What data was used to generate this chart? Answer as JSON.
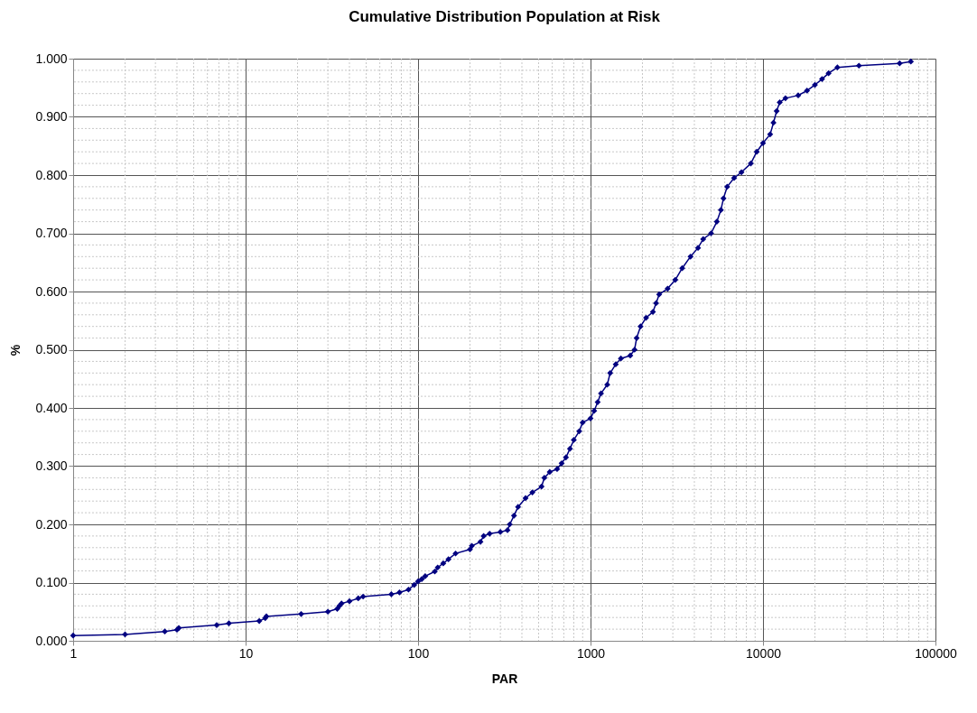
{
  "chart_data": {
    "type": "line",
    "title": "Cumulative Distribution Population at Risk",
    "xlabel": "PAR",
    "ylabel": "%",
    "log": "x",
    "xlim": [
      1,
      100000
    ],
    "xticks": [
      1,
      10,
      100,
      1000,
      10000,
      100000
    ],
    "ylim": [
      0,
      1
    ],
    "yticks": [
      {
        "value": 0,
        "label": "0.000"
      },
      {
        "value": 0.1,
        "label": "0.100"
      },
      {
        "value": 0.2,
        "label": "0.200"
      },
      {
        "value": 0.3,
        "label": "0.300"
      },
      {
        "value": 0.4,
        "label": "0.400"
      },
      {
        "value": 0.5,
        "label": "0.500"
      },
      {
        "value": 0.6,
        "label": "0.600"
      },
      {
        "value": 0.7,
        "label": "0.700"
      },
      {
        "value": 0.8,
        "label": "0.800"
      },
      {
        "value": 0.9,
        "label": "0.900"
      },
      {
        "value": 1,
        "label": "1.000"
      }
    ],
    "grid": true,
    "marker": "diamond",
    "line_style": "solid",
    "series": [
      {
        "color": "#000080",
        "x": [
          1,
          2,
          3.4,
          4,
          4.1,
          6.8,
          8,
          12,
          13,
          13.2,
          21,
          30,
          34,
          35,
          36,
          40,
          45,
          48,
          70,
          78,
          88,
          95,
          100,
          105,
          110,
          125,
          130,
          140,
          150,
          165,
          200,
          205,
          230,
          240,
          260,
          300,
          330,
          340,
          360,
          380,
          420,
          460,
          520,
          540,
          580,
          640,
          680,
          720,
          760,
          800,
          860,
          900,
          1000,
          1050,
          1100,
          1150,
          1250,
          1300,
          1400,
          1500,
          1700,
          1800,
          1850,
          1950,
          2100,
          2300,
          2400,
          2500,
          2800,
          3100,
          3400,
          3800,
          4200,
          4500,
          5000,
          5400,
          5700,
          5900,
          6200,
          6800,
          7500,
          8500,
          9200,
          10000,
          11000,
          11500,
          12000,
          12500,
          13500,
          16000,
          18000,
          20000,
          22000,
          24000,
          27000,
          36000,
          62000,
          72000
        ],
        "values": [
          0.009,
          0.011,
          0.016,
          0.019,
          0.022,
          0.027,
          0.03,
          0.034,
          0.039,
          0.042,
          0.046,
          0.05,
          0.055,
          0.06,
          0.064,
          0.068,
          0.073,
          0.076,
          0.08,
          0.083,
          0.088,
          0.096,
          0.102,
          0.106,
          0.111,
          0.119,
          0.126,
          0.133,
          0.14,
          0.15,
          0.157,
          0.163,
          0.17,
          0.18,
          0.184,
          0.187,
          0.19,
          0.2,
          0.215,
          0.23,
          0.245,
          0.255,
          0.265,
          0.28,
          0.29,
          0.295,
          0.305,
          0.315,
          0.33,
          0.345,
          0.36,
          0.375,
          0.382,
          0.395,
          0.41,
          0.425,
          0.44,
          0.46,
          0.475,
          0.485,
          0.49,
          0.5,
          0.52,
          0.54,
          0.555,
          0.565,
          0.58,
          0.595,
          0.605,
          0.62,
          0.64,
          0.66,
          0.675,
          0.69,
          0.7,
          0.72,
          0.74,
          0.76,
          0.78,
          0.795,
          0.805,
          0.82,
          0.84,
          0.855,
          0.87,
          0.89,
          0.91,
          0.925,
          0.932,
          0.937,
          0.945,
          0.955,
          0.965,
          0.975,
          0.985,
          0.988,
          0.992,
          0.995
        ]
      }
    ]
  }
}
